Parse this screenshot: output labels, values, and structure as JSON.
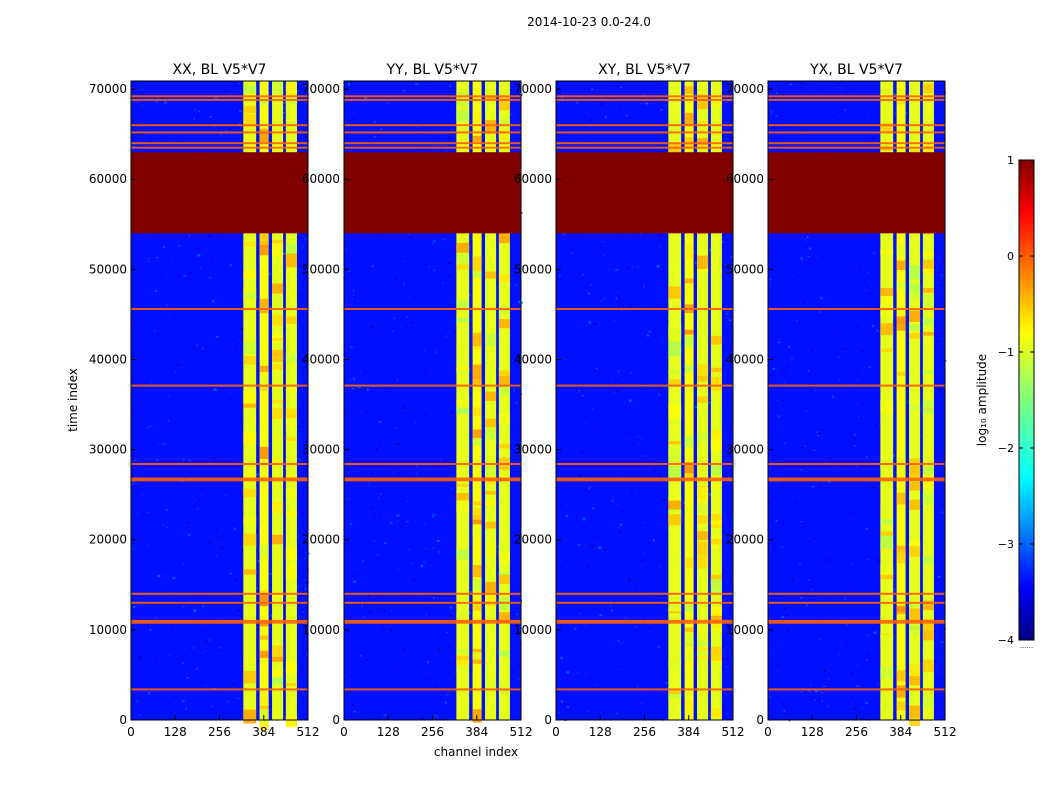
{
  "figure": {
    "suptitle": "2014-10-23 0.0-24.0"
  },
  "chart_data": {
    "type": "heatmap",
    "title": "2014-10-23 0.0-24.0",
    "xlabel": "channel index",
    "ylabel": "time index",
    "xlim": [
      0,
      512
    ],
    "ylim": [
      0,
      70900
    ],
    "xticks": [
      0,
      128,
      256,
      384,
      512
    ],
    "yticks": [
      0,
      10000,
      20000,
      30000,
      40000,
      50000,
      60000,
      70000
    ],
    "colormap": "jet",
    "panels": [
      {
        "title": "XX, BL V5*V7",
        "polarization": "XX"
      },
      {
        "title": "YY, BL V5*V7",
        "polarization": "YY"
      },
      {
        "title": "XY, BL V5*V7",
        "polarization": "XY"
      },
      {
        "title": "YX, BL V5*V7",
        "polarization": "YX"
      }
    ],
    "flagged_time_block": [
      54000,
      63000
    ],
    "flagged_value_log10": 1,
    "background_log10": -3.3,
    "bright_channel_bands": [
      {
        "start": 325,
        "end": 362,
        "log10": -1.0
      },
      {
        "start": 372,
        "end": 398,
        "log10": -0.9
      },
      {
        "start": 408,
        "end": 440,
        "log10": -1.0
      },
      {
        "start": 448,
        "end": 480,
        "log10": -1.0
      }
    ],
    "rfi_time_lines": [
      3400,
      10800,
      11000,
      13000,
      14000,
      26600,
      26800,
      28400,
      37100,
      45600,
      63500,
      64000,
      65200,
      66000,
      68800,
      69200
    ],
    "colorbar": {
      "label": "log₁₀ amplitude",
      "min": -4,
      "max": 1,
      "ticks": [
        1,
        0,
        -1,
        -2,
        -3,
        -4
      ],
      "tick_labels": [
        "1",
        "0",
        "−1",
        "−2",
        "−3",
        "−4"
      ],
      "extend_label": "......"
    }
  }
}
